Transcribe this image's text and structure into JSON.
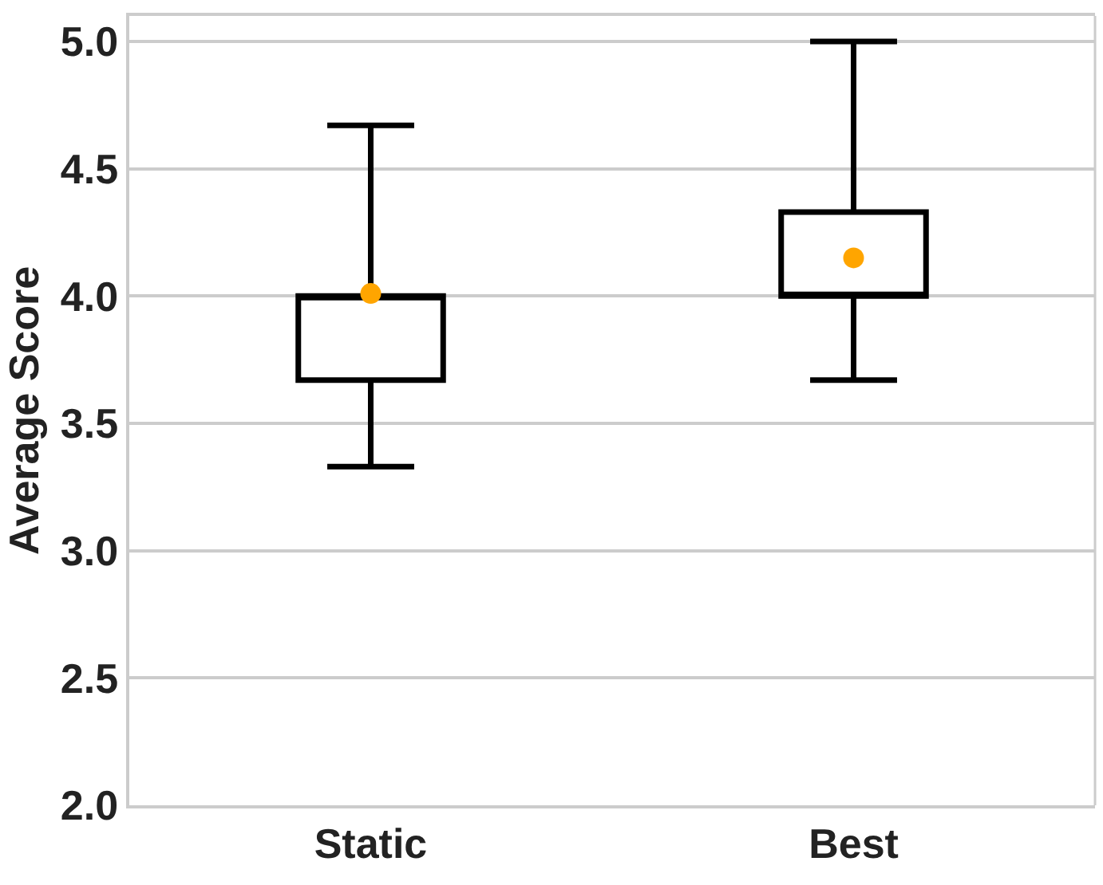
{
  "chart_data": {
    "type": "box",
    "ylabel": "Average Score",
    "categories": [
      "Static",
      "Best"
    ],
    "boxes": [
      {
        "low": 3.33,
        "q1": 3.67,
        "median": 4.0,
        "q3": 4.0,
        "high": 4.67
      },
      {
        "low": 3.67,
        "q1": 4.0,
        "median": 4.0,
        "q3": 4.33,
        "high": 5.0
      }
    ],
    "series": [
      {
        "type": "scatter",
        "color": "#ffa500",
        "x": [
          "Static",
          "Best"
        ],
        "values": [
          4.01,
          4.15
        ]
      }
    ],
    "ylim": [
      2.0,
      5.1
    ],
    "yticks": [
      {
        "value": 2.0,
        "label": "2.0"
      },
      {
        "value": 2.5,
        "label": "2.5"
      },
      {
        "value": 3.0,
        "label": "3.0"
      },
      {
        "value": 3.5,
        "label": "3.5"
      },
      {
        "value": 4.0,
        "label": "4.0"
      },
      {
        "value": 4.5,
        "label": "4.5"
      },
      {
        "value": 5.0,
        "label": "5.0"
      }
    ],
    "grid": "y",
    "marker": "circle"
  }
}
